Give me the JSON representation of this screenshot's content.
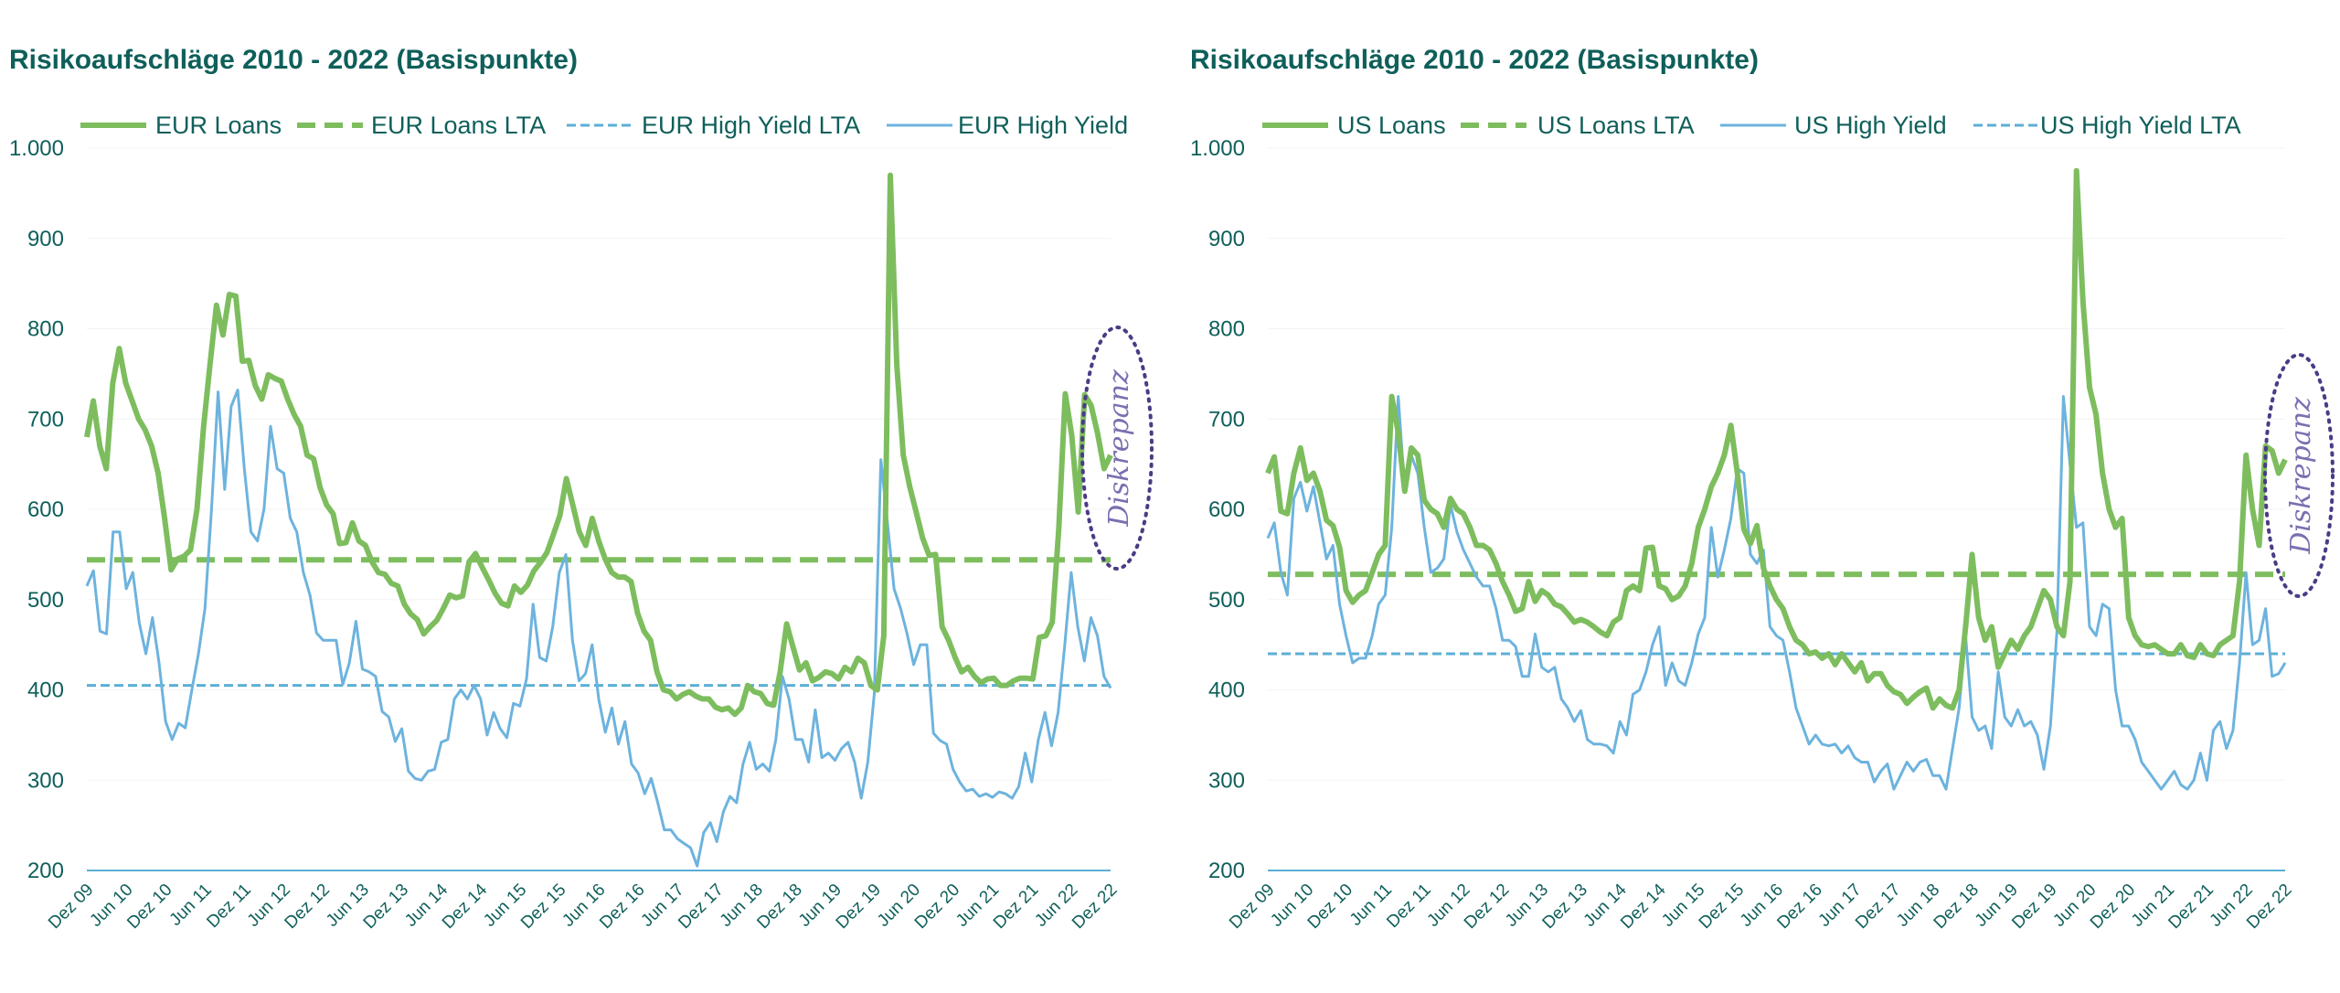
{
  "chart_data": [
    {
      "type": "line",
      "title": "Risikoaufschläge 2010 - 2022 (Basispunkte)",
      "ylim": [
        200,
        1000
      ],
      "y_ticks": [
        "200",
        "300",
        "400",
        "500",
        "600",
        "700",
        "800",
        "900",
        "1.000"
      ],
      "x_ticks": [
        "Dez 09",
        "Jun 10",
        "Dez 10",
        "Jun 11",
        "Dez 11",
        "Jun 12",
        "Dez 12",
        "Jun 13",
        "Dez 13",
        "Jun 14",
        "Dez 14",
        "Jun 15",
        "Dez 15",
        "Jun 16",
        "Dez 16",
        "Jun 17",
        "Dez 17",
        "Jun 18",
        "Dez 18",
        "Jun 19",
        "Dez 19",
        "Jun 20",
        "Dez 20",
        "Jun 21",
        "Dez 21",
        "Jun 22",
        "Dez 22"
      ],
      "legend": "top",
      "grid": false,
      "annotation": "Diskrepanz",
      "series": [
        {
          "name": "EUR Loans",
          "color": "#7dbd5e",
          "style": "solid-thick",
          "values": [
            680,
            720,
            670,
            645,
            740,
            778,
            740,
            720,
            700,
            688,
            670,
            640,
            590,
            533,
            545,
            548,
            555,
            600,
            690,
            760,
            826,
            793,
            838,
            836,
            764,
            765,
            737,
            722,
            749,
            745,
            742,
            722,
            705,
            692,
            660,
            656,
            624,
            605,
            595,
            562,
            563,
            585,
            565,
            560,
            542,
            530,
            528,
            518,
            515,
            495,
            484,
            478,
            462,
            470,
            477,
            490,
            505,
            502,
            504,
            542,
            551,
            536,
            522,
            507,
            496,
            493,
            515,
            508,
            516,
            532,
            541,
            552,
            572,
            593,
            634,
            605,
            575,
            560,
            590,
            565,
            545,
            530,
            525,
            525,
            520,
            485,
            465,
            455,
            420,
            400,
            398,
            390,
            395,
            398,
            393,
            390,
            390,
            381,
            378,
            380,
            373,
            380,
            405,
            398,
            396,
            385,
            383,
            420,
            473,
            447,
            422,
            430,
            410,
            414,
            420,
            418,
            412,
            425,
            420,
            435,
            430,
            405,
            400,
            460,
            970,
            760,
            660,
            625,
            597,
            568,
            549,
            550,
            470,
            455,
            436,
            420,
            425,
            415,
            408,
            412,
            413,
            405,
            405,
            410,
            413,
            413,
            412,
            458,
            460,
            475,
            578,
            728,
            682,
            597,
            727,
            715,
            684,
            645,
            660
          ]
        },
        {
          "name": "EUR Loans LTA",
          "color": "#7dbd5e",
          "style": "dashed-thick",
          "values": [
            544
          ]
        },
        {
          "name": "EUR High Yield LTA",
          "color": "#5bafd6",
          "style": "dashed-thin",
          "values": [
            405
          ]
        },
        {
          "name": "EUR High Yield",
          "color": "#6db3de",
          "style": "solid-thin",
          "values": [
            515,
            532,
            465,
            462,
            575,
            575,
            512,
            530,
            474,
            440,
            480,
            430,
            365,
            345,
            363,
            358,
            400,
            440,
            490,
            600,
            730,
            622,
            714,
            732,
            645,
            575,
            565,
            600,
            692,
            645,
            640,
            590,
            575,
            530,
            505,
            463,
            455,
            455,
            455,
            406,
            430,
            476,
            423,
            420,
            415,
            376,
            370,
            343,
            357,
            310,
            302,
            300,
            310,
            312,
            342,
            345,
            390,
            400,
            390,
            405,
            390,
            350,
            375,
            357,
            347,
            385,
            382,
            412,
            495,
            436,
            432,
            470,
            530,
            550,
            455,
            410,
            418,
            450,
            390,
            353,
            380,
            340,
            365,
            318,
            308,
            285,
            302,
            275,
            245,
            245,
            235,
            230,
            225,
            205,
            242,
            253,
            232,
            265,
            282,
            275,
            318,
            342,
            312,
            318,
            310,
            345,
            415,
            390,
            345,
            345,
            320,
            378,
            325,
            330,
            322,
            335,
            342,
            320,
            280,
            320,
            396,
            655,
            585,
            512,
            490,
            462,
            428,
            450,
            450,
            352,
            344,
            340,
            312,
            298,
            288,
            290,
            282,
            285,
            281,
            287,
            285,
            280,
            293,
            330,
            298,
            345,
            375,
            338,
            375,
            448,
            530,
            470,
            432,
            480,
            460,
            415,
            402
          ]
        },
        {
          "name": "",
          "color": "#ffffff",
          "style": "none",
          "values": []
        }
      ]
    },
    {
      "type": "line",
      "title": "Risikoaufschläge 2010 - 2022 (Basispunkte)",
      "ylim": [
        200,
        1000
      ],
      "y_ticks": [
        "200",
        "300",
        "400",
        "500",
        "600",
        "700",
        "800",
        "900",
        "1.000"
      ],
      "x_ticks": [
        "Dez 09",
        "Jun 10",
        "Dez 10",
        "Jun 11",
        "Dez 11",
        "Jun 12",
        "Dez 12",
        "Jun 13",
        "Dez 13",
        "Jun 14",
        "Dez 14",
        "Jun 15",
        "Dez 15",
        "Jun 16",
        "Dez 16",
        "Jun 17",
        "Dez 17",
        "Jun 18",
        "Dez 18",
        "Jun 19",
        "Dez 19",
        "Jun 20",
        "Dez 20",
        "Jun 21",
        "Dez 21",
        "Jun 22",
        "Dez 22"
      ],
      "legend": "top",
      "grid": false,
      "annotation": "Diskrepanz",
      "series": [
        {
          "name": "US Loans",
          "color": "#7dbd5e",
          "style": "solid-thick",
          "values": [
            640,
            658,
            598,
            595,
            640,
            668,
            632,
            640,
            620,
            588,
            582,
            558,
            510,
            497,
            505,
            510,
            530,
            550,
            560,
            725,
            685,
            620,
            668,
            660,
            610,
            600,
            595,
            580,
            612,
            600,
            595,
            580,
            560,
            560,
            555,
            540,
            520,
            505,
            487,
            490,
            520,
            498,
            510,
            505,
            495,
            492,
            484,
            475,
            478,
            475,
            470,
            464,
            460,
            475,
            480,
            510,
            515,
            510,
            557,
            558,
            515,
            512,
            500,
            504,
            515,
            540,
            580,
            600,
            625,
            640,
            660,
            693,
            640,
            578,
            562,
            582,
            535,
            515,
            500,
            490,
            470,
            455,
            450,
            440,
            442,
            435,
            440,
            428,
            440,
            430,
            420,
            430,
            410,
            418,
            418,
            405,
            398,
            395,
            385,
            392,
            398,
            402,
            380,
            390,
            383,
            380,
            400,
            470,
            550,
            480,
            455,
            470,
            425,
            440,
            455,
            445,
            460,
            470,
            490,
            510,
            500,
            470,
            460,
            520,
            975,
            830,
            735,
            705,
            640,
            600,
            580,
            590,
            480,
            460,
            450,
            448,
            450,
            445,
            440,
            440,
            450,
            438,
            436,
            450,
            440,
            438,
            450,
            455,
            460,
            520,
            660,
            600,
            560,
            670,
            665,
            640,
            655
          ]
        },
        {
          "name": "US Loans LTA",
          "color": "#7dbd5e",
          "style": "dashed-thick",
          "values": [
            528
          ]
        },
        {
          "name": "US High Yield",
          "color": "#6db3de",
          "style": "solid-thin",
          "values": [
            568,
            585,
            530,
            505,
            612,
            630,
            598,
            625,
            585,
            545,
            560,
            495,
            460,
            430,
            435,
            435,
            460,
            495,
            505,
            580,
            725,
            620,
            660,
            640,
            580,
            530,
            535,
            545,
            605,
            575,
            555,
            540,
            525,
            515,
            515,
            490,
            455,
            455,
            448,
            415,
            415,
            462,
            425,
            420,
            425,
            390,
            380,
            365,
            377,
            345,
            340,
            340,
            338,
            330,
            365,
            350,
            395,
            400,
            420,
            450,
            470,
            405,
            430,
            410,
            405,
            430,
            462,
            480,
            580,
            525,
            555,
            590,
            645,
            640,
            550,
            540,
            555,
            470,
            460,
            455,
            420,
            380,
            360,
            340,
            350,
            340,
            338,
            340,
            330,
            338,
            325,
            320,
            320,
            298,
            310,
            318,
            290,
            305,
            320,
            310,
            320,
            323,
            305,
            305,
            290,
            335,
            380,
            460,
            370,
            355,
            360,
            335,
            420,
            370,
            360,
            378,
            360,
            365,
            350,
            312,
            360,
            465,
            725,
            650,
            580,
            585,
            470,
            460,
            495,
            490,
            400,
            360,
            360,
            345,
            320,
            310,
            300,
            290,
            300,
            310,
            295,
            290,
            300,
            330,
            300,
            355,
            365,
            335,
            355,
            430,
            530,
            450,
            455,
            490,
            415,
            418,
            430
          ]
        },
        {
          "name": "US High Yield LTA",
          "color": "#5bafd6",
          "style": "dashed-thin",
          "values": [
            440
          ]
        }
      ]
    }
  ]
}
